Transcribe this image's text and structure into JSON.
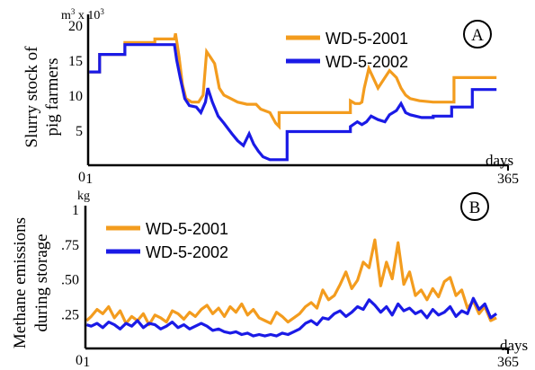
{
  "colors": {
    "series_a": "#F39C1E",
    "series_b": "#1A1AE6",
    "axis": "#000000"
  },
  "chart_data": [
    {
      "type": "line",
      "panel_label": "A",
      "ylabel_line1": "Slurry stock of",
      "ylabel_line2": "pig farmers",
      "yunit": "m",
      "yunit_sup": "3",
      "yunit_scale": "x 10",
      "yunit_scale_sup": "3",
      "xunit": "days",
      "ylim": [
        0,
        21
      ],
      "xlim": [
        0,
        365
      ],
      "y_ticks": [
        {
          "value": 0,
          "label": "0"
        },
        {
          "value": 5,
          "label": "5"
        },
        {
          "value": 10,
          "label": "10"
        },
        {
          "value": 15,
          "label": "15"
        },
        {
          "value": 20,
          "label": "20"
        }
      ],
      "x_ticks": [
        {
          "value": 1,
          "label": "1"
        },
        {
          "value": 365,
          "label": "365"
        }
      ],
      "legend_position": "top-center",
      "series": [
        {
          "name": "WD-5-2001",
          "color": "#F39C1E",
          "x": [
            1,
            10,
            10,
            32,
            32,
            58,
            58,
            75,
            76,
            79,
            82,
            85,
            90,
            96,
            100,
            103,
            106,
            110,
            114,
            118,
            124,
            130,
            138,
            146,
            150,
            158,
            163,
            166,
            166,
            196,
            196,
            228,
            228,
            232,
            236,
            238,
            240,
            244,
            252,
            262,
            268,
            272,
            276,
            280,
            288,
            300,
            302,
            318,
            318,
            334,
            334,
            355
          ],
          "y": [
            13.3,
            13.3,
            15.8,
            15.8,
            17.5,
            17.5,
            18.0,
            18.0,
            18.8,
            15.5,
            11.5,
            9.5,
            9.0,
            9.0,
            10.0,
            16.2,
            15.5,
            14.5,
            11.0,
            10.0,
            9.5,
            9.0,
            8.7,
            8.7,
            8.0,
            7.5,
            6.0,
            5.5,
            7.5,
            7.5,
            7.5,
            7.5,
            9.2,
            8.8,
            8.8,
            9.0,
            11.0,
            13.8,
            11.0,
            13.5,
            12.5,
            11.0,
            10.0,
            9.5,
            9.2,
            9.0,
            9.0,
            9.0,
            12.5,
            12.5,
            12.5,
            12.5
          ]
        },
        {
          "name": "WD-5-2002",
          "color": "#1A1AE6",
          "x": [
            1,
            10,
            10,
            32,
            32,
            58,
            58,
            75,
            77,
            80,
            84,
            88,
            94,
            98,
            102,
            104,
            108,
            113,
            118,
            125,
            130,
            135,
            140,
            144,
            148,
            152,
            158,
            166,
            173,
            173,
            196,
            196,
            228,
            228,
            234,
            238,
            242,
            246,
            252,
            258,
            262,
            268,
            272,
            276,
            280,
            290,
            300,
            300,
            316,
            316,
            334,
            334,
            355
          ],
          "y": [
            13.3,
            13.3,
            15.8,
            15.8,
            17.2,
            17.2,
            17.2,
            17.2,
            15.0,
            12.5,
            9.5,
            8.5,
            8.3,
            7.5,
            9.0,
            11.0,
            9.0,
            7.0,
            6.0,
            4.5,
            3.5,
            2.8,
            4.5,
            3.0,
            2.0,
            1.2,
            0.8,
            0.8,
            0.8,
            4.8,
            4.8,
            4.8,
            4.8,
            5.5,
            6.2,
            5.8,
            6.2,
            7.0,
            6.5,
            6.2,
            7.2,
            7.8,
            8.8,
            7.5,
            7.2,
            6.8,
            6.8,
            7.0,
            7.0,
            8.3,
            8.3,
            10.8,
            10.8
          ]
        }
      ]
    },
    {
      "type": "line",
      "panel_label": "B",
      "ylabel_line1": "Methane emissions",
      "ylabel_line2": "during storage",
      "yunit": "kg",
      "xunit": "days",
      "ylim": [
        0,
        1.0
      ],
      "xlim": [
        0,
        365
      ],
      "y_ticks": [
        {
          "value": 0,
          "label": "0"
        },
        {
          "value": 0.25,
          "label": ".25"
        },
        {
          "value": 0.5,
          "label": ".50"
        },
        {
          "value": 0.75,
          "label": ".75"
        },
        {
          "value": 1.0,
          "label": "1"
        }
      ],
      "x_ticks": [
        {
          "value": 1,
          "label": "1"
        },
        {
          "value": 365,
          "label": "365"
        }
      ],
      "legend_position": "top-left",
      "series": [
        {
          "name": "WD-5-2001",
          "color": "#F39C1E",
          "x": [
            1,
            5,
            10,
            15,
            20,
            25,
            30,
            35,
            40,
            45,
            50,
            55,
            60,
            65,
            70,
            75,
            80,
            85,
            90,
            95,
            100,
            105,
            110,
            115,
            120,
            125,
            130,
            135,
            140,
            145,
            150,
            155,
            160,
            165,
            170,
            175,
            180,
            185,
            190,
            195,
            200,
            205,
            210,
            215,
            220,
            225,
            230,
            235,
            240,
            245,
            250,
            255,
            260,
            265,
            270,
            275,
            280,
            285,
            290,
            295,
            300,
            305,
            310,
            315,
            320,
            325,
            330,
            335,
            340,
            345,
            350,
            355
          ],
          "y": [
            0.2,
            0.23,
            0.28,
            0.25,
            0.3,
            0.22,
            0.27,
            0.18,
            0.23,
            0.2,
            0.25,
            0.17,
            0.24,
            0.22,
            0.19,
            0.27,
            0.25,
            0.21,
            0.26,
            0.23,
            0.28,
            0.31,
            0.25,
            0.29,
            0.23,
            0.3,
            0.26,
            0.32,
            0.24,
            0.28,
            0.22,
            0.2,
            0.18,
            0.26,
            0.23,
            0.19,
            0.22,
            0.25,
            0.3,
            0.33,
            0.29,
            0.42,
            0.35,
            0.38,
            0.46,
            0.55,
            0.43,
            0.49,
            0.62,
            0.58,
            0.78,
            0.45,
            0.62,
            0.5,
            0.76,
            0.46,
            0.55,
            0.38,
            0.42,
            0.35,
            0.43,
            0.37,
            0.48,
            0.51,
            0.38,
            0.42,
            0.29,
            0.34,
            0.25,
            0.3,
            0.2,
            0.22
          ]
        },
        {
          "name": "WD-5-2002",
          "color": "#1A1AE6",
          "x": [
            1,
            5,
            10,
            15,
            20,
            25,
            30,
            35,
            40,
            45,
            50,
            55,
            60,
            65,
            70,
            75,
            80,
            85,
            90,
            95,
            100,
            105,
            110,
            115,
            120,
            125,
            130,
            135,
            140,
            145,
            150,
            155,
            160,
            165,
            170,
            175,
            180,
            185,
            190,
            195,
            200,
            205,
            210,
            215,
            220,
            225,
            230,
            235,
            240,
            245,
            250,
            255,
            260,
            265,
            270,
            275,
            280,
            285,
            290,
            295,
            300,
            305,
            310,
            315,
            320,
            325,
            330,
            335,
            340,
            345,
            350,
            355
          ],
          "y": [
            0.17,
            0.16,
            0.18,
            0.15,
            0.19,
            0.17,
            0.14,
            0.18,
            0.16,
            0.2,
            0.15,
            0.18,
            0.17,
            0.14,
            0.16,
            0.19,
            0.15,
            0.17,
            0.14,
            0.16,
            0.18,
            0.16,
            0.13,
            0.14,
            0.12,
            0.11,
            0.12,
            0.1,
            0.11,
            0.09,
            0.1,
            0.09,
            0.1,
            0.09,
            0.11,
            0.1,
            0.12,
            0.14,
            0.18,
            0.2,
            0.17,
            0.22,
            0.21,
            0.25,
            0.27,
            0.23,
            0.26,
            0.3,
            0.28,
            0.35,
            0.31,
            0.26,
            0.3,
            0.24,
            0.32,
            0.27,
            0.29,
            0.25,
            0.27,
            0.22,
            0.28,
            0.24,
            0.26,
            0.3,
            0.23,
            0.27,
            0.25,
            0.36,
            0.28,
            0.32,
            0.22,
            0.25
          ]
        }
      ]
    }
  ]
}
